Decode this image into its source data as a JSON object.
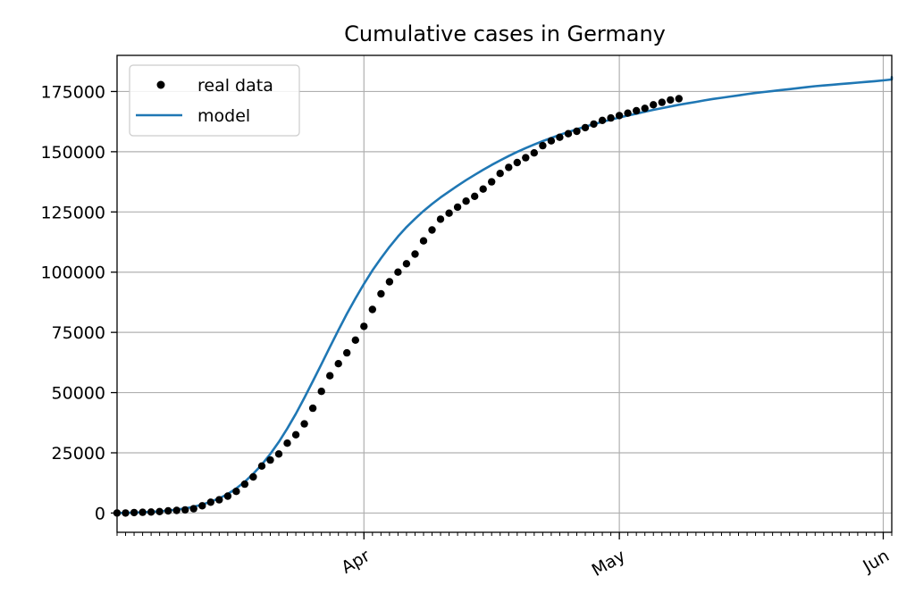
{
  "chart_data": {
    "type": "line",
    "title": "Cumulative cases in Germany",
    "xlabel": "",
    "ylabel": "",
    "x_range": [
      "2020-03-03",
      "2020-06-02"
    ],
    "ylim": [
      -8000,
      190000
    ],
    "y_ticks": [
      0,
      25000,
      50000,
      75000,
      100000,
      125000,
      150000,
      175000
    ],
    "y_tick_labels": [
      "0",
      "25000",
      "50000",
      "75000",
      "100000",
      "125000",
      "150000",
      "175000"
    ],
    "x_ticks": [
      {
        "date": "2020-04-01",
        "label": "Apr"
      },
      {
        "date": "2020-05-01",
        "label": "May"
      },
      {
        "date": "2020-06-01",
        "label": "Jun"
      }
    ],
    "grid": true,
    "legend_position": "top-left",
    "series": [
      {
        "name": "real data",
        "style": "points",
        "color": "#000000",
        "x_start": "2020-03-03",
        "values": [
          0,
          0,
          200,
          300,
          400,
          600,
          900,
          1100,
          1300,
          1800,
          3000,
          4500,
          5500,
          7000,
          9000,
          12000,
          15000,
          19500,
          22000,
          24500,
          29000,
          32500,
          37000,
          43500,
          50500,
          57000,
          62000,
          66500,
          71800,
          77500,
          84500,
          91000,
          96000,
          100000,
          103500,
          107500,
          113000,
          117500,
          122000,
          124500,
          127000,
          129500,
          131500,
          134500,
          137500,
          141000,
          143500,
          145500,
          147500,
          149500,
          152500,
          154500,
          156000,
          157500,
          158500,
          160000,
          161500,
          163000,
          164000,
          165000,
          166000,
          167000,
          168000,
          169500,
          170500,
          171500,
          172000
        ]
      },
      {
        "name": "model",
        "style": "line",
        "color": "#1f77b4",
        "x_start": "2020-03-03",
        "values": [
          0,
          100,
          200,
          300,
          500,
          700,
          1000,
          1400,
          1900,
          2600,
          3500,
          4700,
          6100,
          7900,
          10200,
          13000,
          16300,
          20100,
          24500,
          29500,
          35100,
          41200,
          47800,
          54700,
          61800,
          68900,
          75900,
          82700,
          89100,
          95100,
          100700,
          105800,
          110500,
          114800,
          118700,
          122200,
          125400,
          128300,
          131000,
          133500,
          135900,
          138200,
          140400,
          142500,
          144500,
          146400,
          148200,
          149900,
          151500,
          153000,
          154400,
          155700,
          157000,
          158200,
          159300,
          160400,
          161400,
          162400,
          163300,
          164200,
          165000,
          165800,
          166600,
          167400,
          168100,
          168800,
          169500,
          170100,
          170700,
          171300,
          171900,
          172400,
          172900,
          173400,
          173900,
          174400,
          174800,
          175200,
          175600,
          176000,
          176400,
          176800,
          177200,
          177500,
          177800,
          178100,
          178400,
          178700,
          179000,
          179300,
          179600,
          180000,
          181000
        ]
      }
    ]
  }
}
